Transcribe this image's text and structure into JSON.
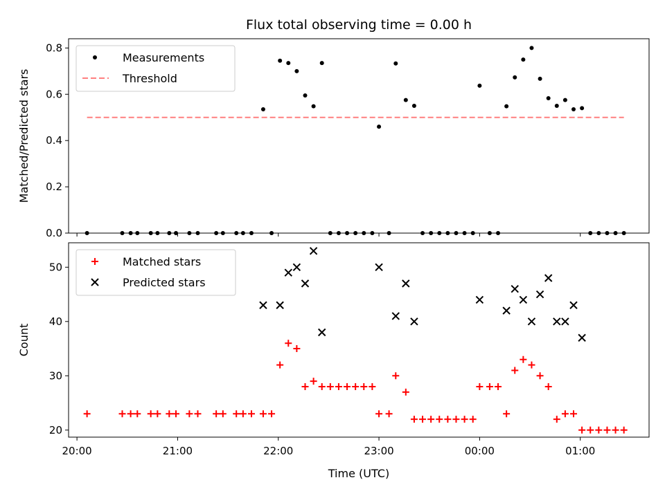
{
  "chart_data": [
    {
      "type": "scatter",
      "title": "Flux total observing time = 0.00 h",
      "ylabel": "Matched/Predicted stars",
      "xlabel": "",
      "xlim": [
        "19:55",
        "01:41"
      ],
      "ylim": [
        0,
        0.84
      ],
      "yticks": [
        "0.0",
        "0.2",
        "0.4",
        "0.6",
        "0.8"
      ],
      "legend_position": "upper-left",
      "series": [
        {
          "name": "Measurements",
          "marker": "dot",
          "color": "#000000",
          "points": [
            [
              "20:06",
              0
            ],
            [
              "20:27",
              0
            ],
            [
              "20:32",
              0
            ],
            [
              "20:36",
              0
            ],
            [
              "20:44",
              0
            ],
            [
              "20:48",
              0
            ],
            [
              "20:55",
              0
            ],
            [
              "20:59",
              0
            ],
            [
              "21:07",
              0
            ],
            [
              "21:12",
              0
            ],
            [
              "21:23",
              0
            ],
            [
              "21:27",
              0
            ],
            [
              "21:35",
              0
            ],
            [
              "21:39",
              0
            ],
            [
              "21:44",
              0
            ],
            [
              "21:51",
              0.535
            ],
            [
              "21:56",
              0
            ],
            [
              "22:01",
              0.745
            ],
            [
              "22:06",
              0.735
            ],
            [
              "22:11",
              0.7
            ],
            [
              "22:16",
              0.595
            ],
            [
              "22:21",
              0.548
            ],
            [
              "22:26",
              0.735
            ],
            [
              "22:31",
              0
            ],
            [
              "22:36",
              0
            ],
            [
              "22:41",
              0
            ],
            [
              "22:46",
              0
            ],
            [
              "22:51",
              0
            ],
            [
              "22:56",
              0
            ],
            [
              "23:00",
              0.46
            ],
            [
              "23:06",
              0
            ],
            [
              "23:10",
              0.733
            ],
            [
              "23:16",
              0.575
            ],
            [
              "23:21",
              0.55
            ],
            [
              "23:26",
              0
            ],
            [
              "23:31",
              0
            ],
            [
              "23:36",
              0
            ],
            [
              "23:41",
              0
            ],
            [
              "23:46",
              0
            ],
            [
              "23:51",
              0
            ],
            [
              "23:56",
              0
            ],
            [
              "00:00",
              0.637
            ],
            [
              "00:06",
              0
            ],
            [
              "00:11",
              0
            ],
            [
              "00:16",
              0.548
            ],
            [
              "00:21",
              0.673
            ],
            [
              "00:26",
              0.75
            ],
            [
              "00:31",
              0.8
            ],
            [
              "00:36",
              0.667
            ],
            [
              "00:41",
              0.583
            ],
            [
              "00:46",
              0.55
            ],
            [
              "00:51",
              0.575
            ],
            [
              "00:56",
              0.535
            ],
            [
              "01:01",
              0.54
            ],
            [
              "01:06",
              0
            ],
            [
              "01:11",
              0
            ],
            [
              "01:16",
              0
            ],
            [
              "01:21",
              0
            ],
            [
              "01:26",
              0
            ]
          ]
        },
        {
          "name": "Threshold",
          "marker": "dashed-line",
          "color": "#ff7f7f",
          "points": [
            [
              "20:06",
              0.5
            ],
            [
              "01:26",
              0.5
            ]
          ]
        }
      ]
    },
    {
      "type": "scatter",
      "title": "",
      "ylabel": "Count",
      "xlabel": "Time (UTC)",
      "xlim": [
        "19:55",
        "01:41"
      ],
      "ylim": [
        18.7,
        54.5
      ],
      "yticks": [
        "20",
        "30",
        "40",
        "50"
      ],
      "xticks": [
        "20:00",
        "21:00",
        "22:00",
        "23:00",
        "00:00",
        "01:00"
      ],
      "legend_position": "upper-left",
      "series": [
        {
          "name": "Matched stars",
          "marker": "plus",
          "color": "#ff0000",
          "points": [
            [
              "20:06",
              23
            ],
            [
              "20:27",
              23
            ],
            [
              "20:32",
              23
            ],
            [
              "20:36",
              23
            ],
            [
              "20:44",
              23
            ],
            [
              "20:48",
              23
            ],
            [
              "20:55",
              23
            ],
            [
              "20:59",
              23
            ],
            [
              "21:07",
              23
            ],
            [
              "21:12",
              23
            ],
            [
              "21:23",
              23
            ],
            [
              "21:27",
              23
            ],
            [
              "21:35",
              23
            ],
            [
              "21:39",
              23
            ],
            [
              "21:44",
              23
            ],
            [
              "21:51",
              23
            ],
            [
              "21:56",
              23
            ],
            [
              "22:01",
              32
            ],
            [
              "22:06",
              36
            ],
            [
              "22:11",
              35
            ],
            [
              "22:16",
              28
            ],
            [
              "22:21",
              29
            ],
            [
              "22:26",
              28
            ],
            [
              "22:31",
              28
            ],
            [
              "22:36",
              28
            ],
            [
              "22:41",
              28
            ],
            [
              "22:46",
              28
            ],
            [
              "22:51",
              28
            ],
            [
              "22:56",
              28
            ],
            [
              "23:00",
              23
            ],
            [
              "23:06",
              23
            ],
            [
              "23:10",
              30
            ],
            [
              "23:16",
              27
            ],
            [
              "23:21",
              22
            ],
            [
              "23:26",
              22
            ],
            [
              "23:31",
              22
            ],
            [
              "23:36",
              22
            ],
            [
              "23:41",
              22
            ],
            [
              "23:46",
              22
            ],
            [
              "23:51",
              22
            ],
            [
              "23:56",
              22
            ],
            [
              "00:00",
              28
            ],
            [
              "00:06",
              28
            ],
            [
              "00:11",
              28
            ],
            [
              "00:16",
              23
            ],
            [
              "00:21",
              31
            ],
            [
              "00:26",
              33
            ],
            [
              "00:31",
              32
            ],
            [
              "00:36",
              30
            ],
            [
              "00:41",
              28
            ],
            [
              "00:46",
              22
            ],
            [
              "00:51",
              23
            ],
            [
              "00:56",
              23
            ],
            [
              "01:01",
              20
            ],
            [
              "01:06",
              20
            ],
            [
              "01:11",
              20
            ],
            [
              "01:16",
              20
            ],
            [
              "01:21",
              20
            ],
            [
              "01:26",
              20
            ]
          ]
        },
        {
          "name": "Predicted stars",
          "marker": "x",
          "color": "#000000",
          "points": [
            [
              "21:51",
              43
            ],
            [
              "22:01",
              43
            ],
            [
              "22:06",
              49
            ],
            [
              "22:11",
              50
            ],
            [
              "22:16",
              47
            ],
            [
              "22:21",
              53
            ],
            [
              "22:26",
              38
            ],
            [
              "23:00",
              50
            ],
            [
              "23:10",
              41
            ],
            [
              "23:16",
              47
            ],
            [
              "23:21",
              40
            ],
            [
              "00:00",
              44
            ],
            [
              "00:16",
              42
            ],
            [
              "00:21",
              46
            ],
            [
              "00:26",
              44
            ],
            [
              "00:31",
              40
            ],
            [
              "00:36",
              45
            ],
            [
              "00:41",
              48
            ],
            [
              "00:46",
              40
            ],
            [
              "00:51",
              40
            ],
            [
              "00:56",
              43
            ],
            [
              "01:01",
              37
            ]
          ]
        }
      ]
    }
  ]
}
